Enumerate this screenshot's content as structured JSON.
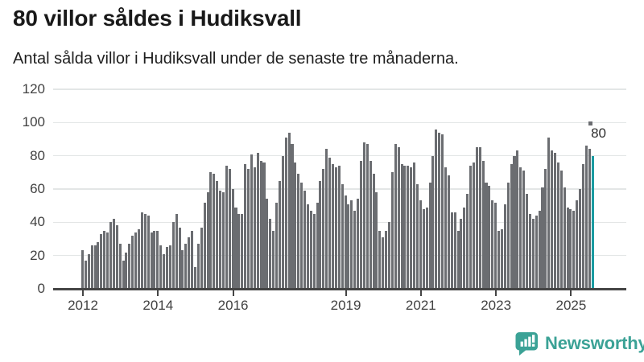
{
  "header": {
    "title": "80 villor såldes i Hudiksvall",
    "subtitle": "Antal sålda villor i Hudiksvall under de senaste tre månaderna."
  },
  "chart_data": {
    "type": "bar",
    "title": "80 villor såldes i Hudiksvall",
    "subtitle": "Antal sålda villor i Hudiksvall under de senaste tre månaderna.",
    "x_start": "2012-01",
    "frequency": "monthly",
    "unit": "sålda villor (rullande 3 månader)",
    "values": [
      23,
      17,
      21,
      26,
      26,
      28,
      33,
      35,
      34,
      40,
      42,
      38,
      27,
      17,
      22,
      27,
      32,
      34,
      36,
      46,
      45,
      44,
      34,
      35,
      35,
      26,
      21,
      25,
      26,
      40,
      45,
      37,
      23,
      27,
      31,
      35,
      13,
      27,
      37,
      52,
      58,
      70,
      69,
      65,
      59,
      58,
      74,
      72,
      60,
      49,
      45,
      45,
      75,
      72,
      81,
      73,
      82,
      77,
      76,
      54,
      42,
      35,
      52,
      65,
      80,
      91,
      94,
      87,
      76,
      69,
      64,
      59,
      51,
      47,
      45,
      52,
      65,
      72,
      84,
      79,
      75,
      73,
      74,
      63,
      56,
      51,
      53,
      47,
      54,
      77,
      88,
      87,
      77,
      69,
      58,
      35,
      31,
      35,
      40,
      70,
      87,
      85,
      75,
      74,
      74,
      73,
      76,
      63,
      53,
      48,
      49,
      64,
      80,
      96,
      94,
      93,
      73,
      68,
      46,
      46,
      35,
      42,
      49,
      57,
      74,
      76,
      85,
      85,
      77,
      64,
      62,
      53,
      52,
      35,
      36,
      51,
      64,
      75,
      80,
      83,
      73,
      71,
      57,
      45,
      42,
      44,
      47,
      61,
      72,
      91,
      83,
      82,
      76,
      71,
      61,
      49,
      48,
      47,
      53,
      60,
      75,
      86,
      84,
      80
    ],
    "highlight": {
      "index": 163,
      "value": 80,
      "label": "80"
    },
    "projection_dash": {
      "value": 100
    },
    "y_ticks": [
      0,
      20,
      40,
      60,
      80,
      100,
      120
    ],
    "ylim": [
      0,
      125
    ],
    "x_tick_years": [
      2012,
      2014,
      2016,
      2019,
      2021,
      2023,
      2025
    ],
    "grid": "horizontal",
    "legend": "none"
  },
  "colors": {
    "bar": "#6b6d71",
    "highlight": "#1b9ba1",
    "gridline": "#e3e6e6",
    "axis": "#454545",
    "brand": "#3ba296"
  },
  "footer": {
    "brand": "Newsworthy",
    "logo_icon": "bar-chart-speech-bubble-icon"
  }
}
